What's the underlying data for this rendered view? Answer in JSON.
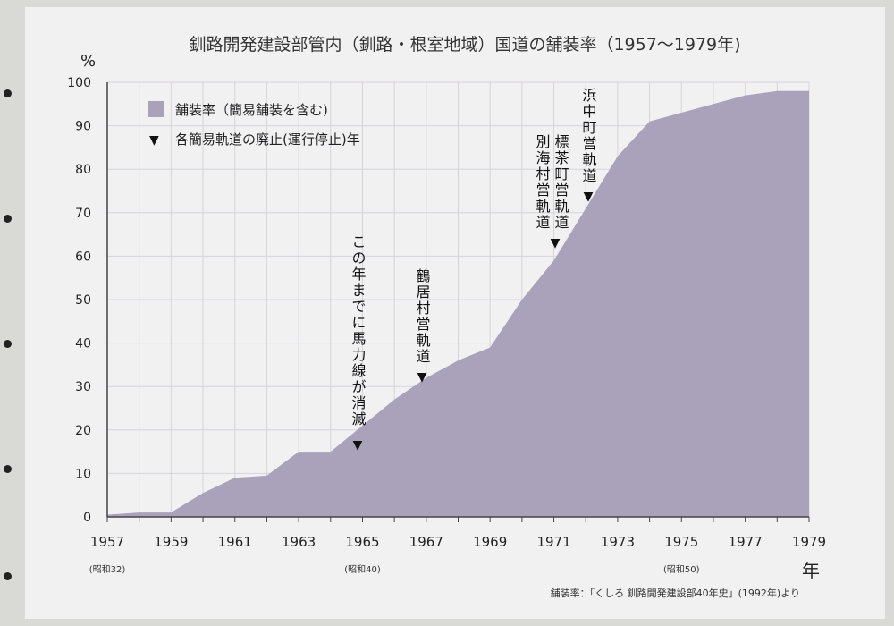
{
  "chart_data": {
    "type": "area",
    "title": "釧路開発建設部管内（釧路・根室地域）国道の舗装率（1957〜1979年)",
    "ylabel": "%",
    "xlabel": "年",
    "ylim": [
      0,
      100
    ],
    "xlim": [
      1957,
      1979
    ],
    "yticks": [
      0,
      10,
      20,
      30,
      40,
      50,
      60,
      70,
      80,
      90,
      100
    ],
    "xtick_labels": [
      "1957",
      "1959",
      "1961",
      "1963",
      "1965",
      "1967",
      "1969",
      "1971",
      "1973",
      "1975",
      "1977",
      "1979"
    ],
    "era_labels": [
      {
        "year": 1957,
        "text": "(昭和32)"
      },
      {
        "year": 1965,
        "text": "(昭和40)"
      },
      {
        "year": 1975,
        "text": "(昭和50)"
      }
    ],
    "grid": true,
    "series": [
      {
        "name": "舗装率（簡易舗装を含む)",
        "color": "#a9a2ba",
        "x": [
          1957,
          1958,
          1959,
          1960,
          1961,
          1962,
          1963,
          1964,
          1965,
          1966,
          1967,
          1968,
          1969,
          1970,
          1971,
          1972,
          1973,
          1974,
          1975,
          1976,
          1977,
          1978,
          1979
        ],
        "values": [
          0.5,
          1,
          1,
          5.5,
          9,
          9.5,
          15,
          15,
          21,
          27,
          32,
          36,
          39,
          50,
          59,
          71,
          83,
          91,
          93,
          95,
          97,
          98,
          98
        ]
      }
    ],
    "legend": {
      "placement": "top-left",
      "area_label": "舗装率（簡易舗装を含む)",
      "marker_label": "各簡易軌道の廃止(運行停止)年"
    },
    "annotations": [
      {
        "year": 1965,
        "lines": [
          "この年までに馬力線が消滅"
        ]
      },
      {
        "year": 1967,
        "lines": [
          "鶴居村営軌道"
        ]
      },
      {
        "year": 1971,
        "lines": [
          "標茶町営軌道",
          "別海村営軌道"
        ]
      },
      {
        "year": 1972,
        "lines": [
          "浜中町営軌道"
        ]
      }
    ],
    "source": "舗装率：「くしろ 釧路開発建設部40年史」(1992年)より"
  }
}
